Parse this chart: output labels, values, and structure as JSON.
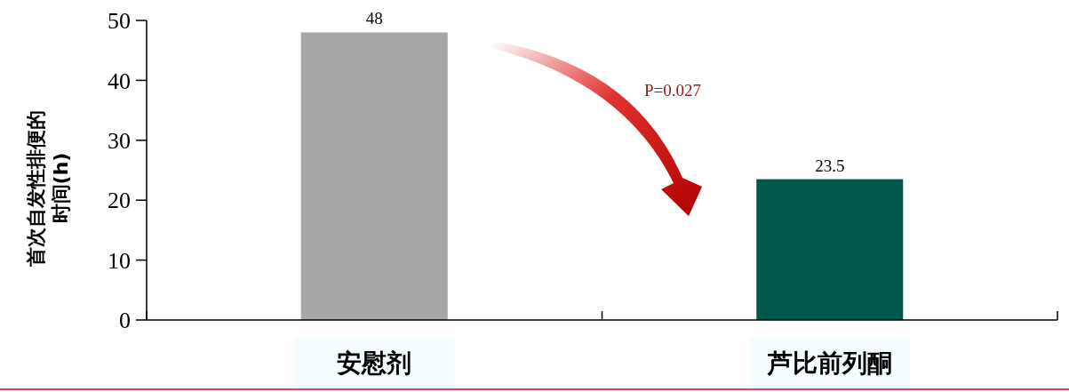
{
  "chart_data": {
    "type": "bar",
    "ylabel": "首次自发性排便的时间(h)",
    "categories": [
      "安慰剂",
      "芦比前列酮"
    ],
    "values": [
      48,
      23.5
    ],
    "colors": [
      "#a6a6a6",
      "#00584a"
    ],
    "ylim": [
      0,
      50
    ],
    "yticks": [
      0,
      10,
      20,
      30,
      40,
      50
    ],
    "data_labels": true,
    "annotations": [
      "P=0.027"
    ]
  }
}
